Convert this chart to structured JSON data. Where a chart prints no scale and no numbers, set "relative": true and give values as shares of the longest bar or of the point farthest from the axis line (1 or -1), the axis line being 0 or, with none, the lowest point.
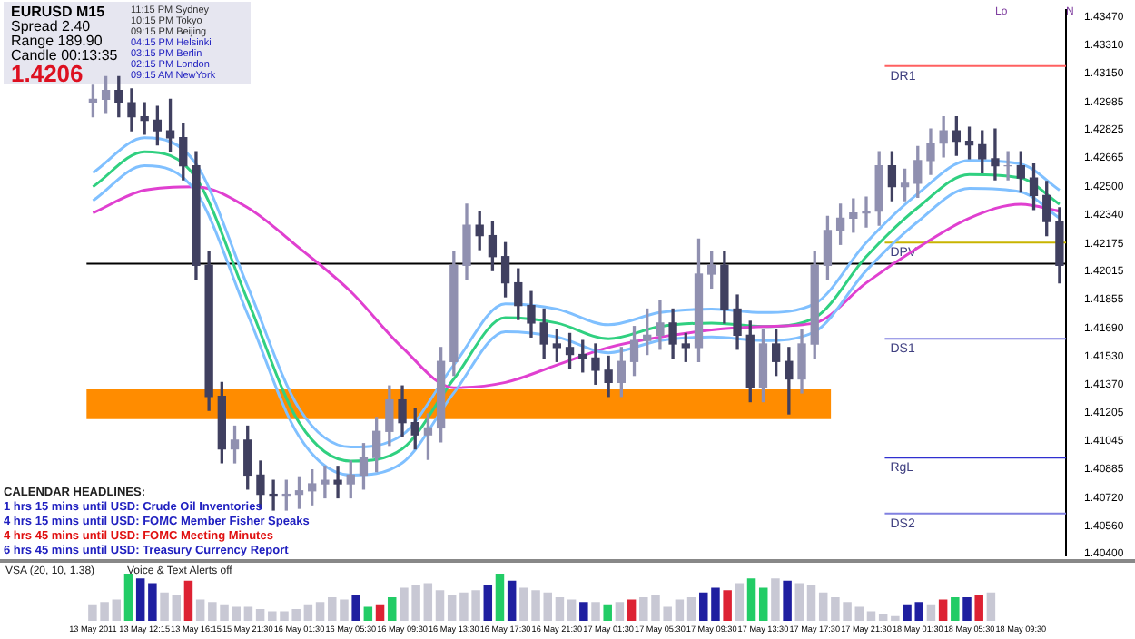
{
  "chart_data": [
    {
      "type": "candlestick",
      "categories": [
        "13 May 2011",
        null,
        null,
        null,
        "13 May 12:15",
        null,
        null,
        null,
        "13 May 16:15",
        null,
        null,
        null,
        "15 May 21:30",
        null,
        null,
        null,
        "16 May 01:30",
        null,
        null,
        null,
        "16 May 05:30",
        null,
        null,
        null,
        "16 May 09:30",
        null,
        null,
        null,
        "16 May 13:30",
        null,
        null,
        null,
        "16 May 17:30",
        null,
        null,
        null,
        "16 May 21:30",
        null,
        null,
        null,
        "17 May 01:30",
        null,
        null,
        null,
        "17 May 05:30",
        null,
        null,
        null,
        "17 May 09:30",
        null,
        null,
        null,
        "17 May 13:30",
        null,
        null,
        null,
        "17 May 17:30",
        null,
        null,
        null,
        "17 May 21:30",
        null,
        null,
        null,
        "18 May 01:30",
        null,
        null,
        null,
        "18 May 05:30",
        null,
        null,
        null,
        "18 May 09:30",
        null,
        null,
        null
      ],
      "ohlc": [
        [
          1.4298,
          1.4308,
          1.429,
          1.43
        ],
        [
          1.43,
          1.4313,
          1.4292,
          1.4305
        ],
        [
          1.4305,
          1.4313,
          1.429,
          1.4298
        ],
        [
          1.4298,
          1.4306,
          1.4282,
          1.429
        ],
        [
          1.429,
          1.4298,
          1.428,
          1.4288
        ],
        [
          1.4288,
          1.4296,
          1.4274,
          1.4282
        ],
        [
          1.4282,
          1.43,
          1.427,
          1.4278
        ],
        [
          1.4278,
          1.4286,
          1.4254,
          1.4262
        ],
        [
          1.4262,
          1.427,
          1.4197,
          1.4205
        ],
        [
          1.4205,
          1.4213,
          1.4122,
          1.413
        ],
        [
          1.413,
          1.4138,
          1.4092,
          1.41
        ],
        [
          1.41,
          1.4113,
          1.4092,
          1.4105
        ],
        [
          1.4105,
          1.4113,
          1.4077,
          1.4085
        ],
        [
          1.4085,
          1.4093,
          1.4066,
          1.4074
        ],
        [
          1.4074,
          1.4082,
          1.4065,
          1.4073
        ],
        [
          1.4073,
          1.4082,
          1.4065,
          1.4074
        ],
        [
          1.4074,
          1.4084,
          1.4066,
          1.4076
        ],
        [
          1.4076,
          1.4088,
          1.4068,
          1.408
        ],
        [
          1.408,
          1.409,
          1.4072,
          1.4082
        ],
        [
          1.4082,
          1.409,
          1.4072,
          1.408
        ],
        [
          1.408,
          1.4093,
          1.4072,
          1.4085
        ],
        [
          1.4085,
          1.4103,
          1.4077,
          1.4095
        ],
        [
          1.4095,
          1.4118,
          1.4087,
          1.411
        ],
        [
          1.411,
          1.4136,
          1.4102,
          1.4128
        ],
        [
          1.4128,
          1.4136,
          1.4107,
          1.4115
        ],
        [
          1.4115,
          1.4123,
          1.41,
          1.4108
        ],
        [
          1.4108,
          1.412,
          1.4094,
          1.4112
        ],
        [
          1.4112,
          1.4158,
          1.4104,
          1.415
        ],
        [
          1.415,
          1.4213,
          1.4142,
          1.4205
        ],
        [
          1.4205,
          1.424,
          1.4197,
          1.4228
        ],
        [
          1.4228,
          1.4236,
          1.4214,
          1.4222
        ],
        [
          1.4222,
          1.423,
          1.4202,
          1.421
        ],
        [
          1.421,
          1.4218,
          1.4187,
          1.4195
        ],
        [
          1.4195,
          1.4203,
          1.4174,
          1.4182
        ],
        [
          1.4182,
          1.419,
          1.4164,
          1.4172
        ],
        [
          1.4172,
          1.418,
          1.4152,
          1.416
        ],
        [
          1.416,
          1.4168,
          1.415,
          1.4158
        ],
        [
          1.4158,
          1.4166,
          1.4146,
          1.4154
        ],
        [
          1.4154,
          1.4162,
          1.4144,
          1.4152
        ],
        [
          1.4152,
          1.416,
          1.4137,
          1.4145
        ],
        [
          1.4145,
          1.4153,
          1.413,
          1.4138
        ],
        [
          1.4138,
          1.4158,
          1.413,
          1.415
        ],
        [
          1.415,
          1.417,
          1.4142,
          1.4162
        ],
        [
          1.4162,
          1.418,
          1.4154,
          1.4165
        ],
        [
          1.4165,
          1.4185,
          1.4157,
          1.4172
        ],
        [
          1.4172,
          1.418,
          1.4152,
          1.416
        ],
        [
          1.416,
          1.4166,
          1.415,
          1.4158
        ],
        [
          1.4158,
          1.422,
          1.415,
          1.42
        ],
        [
          1.42,
          1.4213,
          1.4192,
          1.4205
        ],
        [
          1.4205,
          1.4213,
          1.4172,
          1.418
        ],
        [
          1.418,
          1.4188,
          1.4157,
          1.4165
        ],
        [
          1.4165,
          1.4173,
          1.4127,
          1.4135
        ],
        [
          1.4135,
          1.4168,
          1.4127,
          1.416
        ],
        [
          1.416,
          1.4168,
          1.4142,
          1.415
        ],
        [
          1.415,
          1.4158,
          1.412,
          1.414
        ],
        [
          1.414,
          1.4168,
          1.4132,
          1.416
        ],
        [
          1.416,
          1.4213,
          1.4152,
          1.4205
        ],
        [
          1.4205,
          1.4233,
          1.4197,
          1.4225
        ],
        [
          1.4225,
          1.424,
          1.4217,
          1.4232
        ],
        [
          1.4232,
          1.4243,
          1.4224,
          1.4235
        ],
        [
          1.4235,
          1.4244,
          1.4227,
          1.4236
        ],
        [
          1.4236,
          1.427,
          1.4228,
          1.4262
        ],
        [
          1.4262,
          1.427,
          1.4242,
          1.425
        ],
        [
          1.425,
          1.426,
          1.4242,
          1.4252
        ],
        [
          1.4252,
          1.4273,
          1.4244,
          1.4265
        ],
        [
          1.4265,
          1.4283,
          1.4257,
          1.4275
        ],
        [
          1.4275,
          1.429,
          1.4267,
          1.4282
        ],
        [
          1.4282,
          1.429,
          1.4268,
          1.4276
        ],
        [
          1.4276,
          1.4284,
          1.4266,
          1.4274
        ],
        [
          1.4274,
          1.4282,
          1.4258,
          1.4266
        ],
        [
          1.4266,
          1.4283,
          1.4254,
          1.4262
        ],
        [
          1.4262,
          1.427,
          1.4254,
          1.4262
        ],
        [
          1.4262,
          1.427,
          1.4247,
          1.4255
        ],
        [
          1.4255,
          1.4263,
          1.4237,
          1.4245
        ],
        [
          1.4245,
          1.4253,
          1.4222,
          1.423
        ],
        [
          1.423,
          1.4238,
          1.4195,
          1.4205
        ]
      ],
      "colors": [
        "#9090b0",
        "#9090b0",
        "#404060",
        "#404060",
        "#404060",
        "#404060",
        "#404060",
        "#404060",
        "#404060",
        "#404060",
        "#404060",
        "#9090b0",
        "#404060",
        "#404060",
        "#404060",
        "#9090b0",
        "#9090b0",
        "#9090b0",
        "#9090b0",
        "#404060",
        "#9090b0",
        "#9090b0",
        "#9090b0",
        "#9090b0",
        "#404060",
        "#404060",
        "#9090b0",
        "#9090b0",
        "#9090b0",
        "#9090b0",
        "#404060",
        "#404060",
        "#404060",
        "#404060",
        "#404060",
        "#404060",
        "#404060",
        "#404060",
        "#404060",
        "#404060",
        "#404060",
        "#9090b0",
        "#9090b0",
        "#9090b0",
        "#9090b0",
        "#404060",
        "#404060",
        "#9090b0",
        "#9090b0",
        "#404060",
        "#404060",
        "#404060",
        "#9090b0",
        "#404060",
        "#404060",
        "#9090b0",
        "#9090b0",
        "#9090b0",
        "#9090b0",
        "#9090b0",
        "#9090b0",
        "#9090b0",
        "#404060",
        "#9090b0",
        "#9090b0",
        "#9090b0",
        "#9090b0",
        "#404060",
        "#404060",
        "#404060",
        "#404060",
        "#9090b0",
        "#404060",
        "#404060",
        "#404060",
        "#404060"
      ],
      "series": [
        {
          "type": "line",
          "color": "#80c0ff",
          "values": [
            1.4258,
            null,
            null,
            null,
            1.4278,
            null,
            null,
            null,
            1.4263,
            null,
            null,
            null,
            1.4193,
            null,
            null,
            null,
            1.4123,
            null,
            null,
            null,
            1.4101,
            null,
            null,
            null,
            1.4108,
            null,
            null,
            null,
            1.4148,
            null,
            null,
            null,
            1.4183,
            null,
            null,
            null,
            1.418,
            null,
            null,
            null,
            1.4171,
            null,
            null,
            null,
            1.4178,
            null,
            null,
            null,
            1.418,
            null,
            null,
            null,
            1.4178,
            null,
            null,
            null,
            1.4183,
            null,
            null,
            null,
            1.4218,
            null,
            null,
            null,
            1.4246,
            null,
            null,
            null,
            1.4265,
            null,
            null,
            null,
            1.4263,
            null,
            null,
            1.4248
          ]
        },
        {
          "type": "line",
          "color": "#80c0ff",
          "values": [
            1.4242,
            null,
            null,
            null,
            1.4262,
            null,
            null,
            null,
            1.4247,
            null,
            null,
            null,
            1.4177,
            null,
            null,
            null,
            1.4107,
            null,
            null,
            null,
            1.4085,
            null,
            null,
            null,
            1.4092,
            null,
            null,
            null,
            1.4132,
            null,
            null,
            null,
            1.4167,
            null,
            null,
            null,
            1.4164,
            null,
            null,
            null,
            1.4155,
            null,
            null,
            null,
            1.4162,
            null,
            null,
            null,
            1.4164,
            null,
            null,
            null,
            1.4162,
            null,
            null,
            null,
            1.4167,
            null,
            null,
            null,
            1.4202,
            null,
            null,
            null,
            1.423,
            null,
            null,
            null,
            1.4249,
            null,
            null,
            null,
            1.4247,
            null,
            null,
            1.4232
          ]
        },
        {
          "type": "line",
          "color": "#e040d0",
          "values": [
            1.4235,
            null,
            null,
            null,
            1.4248,
            null,
            null,
            null,
            1.425,
            null,
            null,
            null,
            1.4238,
            null,
            null,
            null,
            1.4215,
            null,
            null,
            null,
            1.419,
            null,
            null,
            null,
            1.4158,
            null,
            null,
            null,
            1.4135,
            null,
            null,
            null,
            1.4138,
            null,
            null,
            null,
            1.4148,
            null,
            null,
            null,
            1.4158,
            null,
            null,
            null,
            null,
            null,
            null,
            null,
            1.4168,
            null,
            null,
            null,
            1.417,
            null,
            null,
            null,
            1.4172,
            null,
            null,
            null,
            1.4195,
            null,
            null,
            null,
            1.4215,
            null,
            null,
            null,
            1.4232,
            null,
            null,
            null,
            1.424,
            null,
            null,
            1.4236
          ]
        },
        {
          "type": "line",
          "color": "#30d080",
          "values": [
            1.425,
            null,
            null,
            null,
            1.427,
            null,
            null,
            null,
            1.4255,
            null,
            null,
            null,
            1.4185,
            null,
            null,
            null,
            1.4115,
            null,
            null,
            null,
            1.4093,
            null,
            null,
            null,
            1.41,
            null,
            null,
            null,
            1.414,
            null,
            null,
            null,
            1.4175,
            null,
            null,
            null,
            1.4172,
            null,
            null,
            null,
            1.4163,
            null,
            null,
            null,
            1.417,
            null,
            null,
            null,
            1.4172,
            null,
            null,
            null,
            1.417,
            null,
            null,
            null,
            1.4175,
            null,
            null,
            null,
            1.421,
            null,
            null,
            null,
            1.4238,
            null,
            null,
            null,
            1.4257,
            null,
            null,
            null,
            1.4255,
            null,
            null,
            1.424
          ]
        }
      ],
      "ylim": [
        1.4039,
        1.4351
      ],
      "yticks": [
        {
          "value": 1.4347,
          "label": "1.43470"
        },
        {
          "value": 1.4331,
          "label": "1.43310"
        },
        {
          "value": 1.4315,
          "label": "1.43150"
        },
        {
          "value": 1.42985,
          "label": "1.42985"
        },
        {
          "value": 1.42825,
          "label": "1.42825"
        },
        {
          "value": 1.42665,
          "label": "1.42665"
        },
        {
          "value": 1.425,
          "label": "1.42500"
        },
        {
          "value": 1.4234,
          "label": "1.42340"
        },
        {
          "value": 1.42175,
          "label": "1.42175"
        },
        {
          "value": 1.42015,
          "label": "1.42015"
        },
        {
          "value": 1.41855,
          "label": "1.41855"
        },
        {
          "value": 1.4169,
          "label": "1.41690"
        },
        {
          "value": 1.4153,
          "label": "1.41530"
        },
        {
          "value": 1.4137,
          "label": "1.41370"
        },
        {
          "value": 1.41205,
          "label": "1.41205"
        },
        {
          "value": 1.41045,
          "label": "1.41045"
        },
        {
          "value": 1.40885,
          "label": "1.40885"
        },
        {
          "value": 1.4072,
          "label": "1.40720"
        },
        {
          "value": 1.4056,
          "label": "1.40560"
        },
        {
          "value": 1.404,
          "label": "1.40400"
        }
      ],
      "ref_lines": [
        {
          "axis": "y",
          "value": 1.4319,
          "label": "DR1",
          "color": "#ff6060"
        },
        {
          "axis": "y",
          "value": 1.4218,
          "label": "DPV",
          "color": "#c8b400"
        },
        {
          "axis": "y",
          "value": 1.4163,
          "label": "DS1",
          "color": "#8080e0"
        },
        {
          "axis": "y",
          "value": 1.4095,
          "label": "RgL",
          "color": "#3030d0"
        },
        {
          "axis": "y",
          "value": 1.4063,
          "label": "DS2",
          "color": "#8080e0"
        },
        {
          "axis": "y",
          "value": 1.4206,
          "label": null,
          "color": "#000000"
        }
      ],
      "bands": [
        {
          "axis": "y",
          "from": 1.4117,
          "to": 1.4134,
          "label": null,
          "color": "#ff8c00"
        }
      ],
      "annotations": [
        "EURUSD  M15",
        "Spread  2.40",
        "Range  189.90",
        "Candle  00:13:35",
        "1.4206",
        "11:15 PM  Sydney",
        "10:15 PM  Tokyo",
        "09:15 PM  Beijing",
        "04:15 PM  Helsinki",
        "03:15 PM  Berlin",
        "02:15 PM  London",
        "09:15 AM  NewYork",
        "CALENDAR HEADLINES:",
        "1 hrs 15 mins until USD: Crude Oil Inventories",
        "4 hrs 15 mins until USD: FOMC Member Fisher Speaks",
        "4 hrs 45 mins until USD: FOMC Meeting Minutes",
        "6 hrs 45 mins until USD: Treasury Currency Report",
        "Lo",
        "N"
      ],
      "grid": false,
      "legend": false
    },
    {
      "type": "bar",
      "relative": true,
      "categories": [
        null,
        null,
        null,
        null,
        null,
        null,
        null,
        null,
        null,
        null,
        null,
        null,
        null,
        null,
        null,
        null,
        null,
        null,
        null,
        null,
        null,
        null,
        null,
        null,
        null,
        null,
        null,
        null,
        null,
        null,
        null,
        null,
        null,
        null,
        null,
        null,
        null,
        null,
        null,
        null,
        null,
        null,
        null,
        null,
        null,
        null,
        null,
        null,
        null,
        null,
        null,
        null,
        null,
        null,
        null,
        null,
        null,
        null,
        null,
        null,
        null,
        null,
        null,
        null,
        null,
        null,
        null,
        null,
        null,
        null,
        null,
        null,
        null,
        null,
        null,
        null
      ],
      "values": [
        0.35,
        0.4,
        0.45,
        1,
        0.9,
        0.8,
        0.6,
        0.55,
        0.85,
        0.45,
        0.4,
        0.35,
        0.3,
        0.3,
        0.25,
        0.2,
        0.2,
        0.25,
        0.35,
        0.4,
        0.5,
        0.45,
        0.55,
        0.3,
        0.35,
        0.5,
        0.7,
        0.75,
        0.8,
        0.65,
        0.55,
        0.6,
        0.65,
        0.75,
        1,
        0.85,
        0.7,
        0.65,
        0.6,
        0.5,
        0.45,
        0.4,
        0.4,
        0.35,
        0.4,
        0.45,
        0.5,
        0.55,
        0.3,
        0.45,
        0.5,
        0.6,
        0.7,
        0.65,
        0.8,
        0.9,
        0.7,
        0.9,
        0.85,
        0.8,
        0.75,
        0.6,
        0.5,
        0.4,
        0.3,
        0.2,
        0.15,
        0.1,
        0.35,
        0.4,
        0.35,
        0.45,
        0.5,
        0.5,
        0.55,
        0.6
      ],
      "colors": [
        "#c8c8d4",
        "#c8c8d4",
        "#c8c8d4",
        "#22cc66",
        "#1f1fa0",
        "#1f1fa0",
        "#c8c8d4",
        "#c8c8d4",
        "#dd2233",
        "#c8c8d4",
        "#c8c8d4",
        "#c8c8d4",
        "#c8c8d4",
        "#c8c8d4",
        "#c8c8d4",
        "#c8c8d4",
        "#c8c8d4",
        "#c8c8d4",
        "#c8c8d4",
        "#c8c8d4",
        "#c8c8d4",
        "#c8c8d4",
        "#1f1fa0",
        "#22cc66",
        "#dd2233",
        "#22cc66",
        "#c8c8d4",
        "#c8c8d4",
        "#c8c8d4",
        "#c8c8d4",
        "#c8c8d4",
        "#c8c8d4",
        "#c8c8d4",
        "#1f1fa0",
        "#22cc66",
        "#1f1fa0",
        "#c8c8d4",
        "#c8c8d4",
        "#c8c8d4",
        "#c8c8d4",
        "#c8c8d4",
        "#1f1fa0",
        "#c8c8d4",
        "#22cc66",
        "#c8c8d4",
        "#dd2233",
        "#c8c8d4",
        "#c8c8d4",
        "#c8c8d4",
        "#c8c8d4",
        "#c8c8d4",
        "#1f1fa0",
        "#1f1fa0",
        "#dd2233",
        "#c8c8d4",
        "#22cc66",
        "#22cc66",
        "#c8c8d4",
        "#1f1fa0",
        "#c8c8d4",
        "#c8c8d4",
        "#c8c8d4",
        "#c8c8d4",
        "#c8c8d4",
        "#c8c8d4",
        "#c8c8d4",
        "#c8c8d4",
        "#c8c8d4",
        "#1f1fa0",
        "#1f1fa0",
        "#c8c8d4",
        "#dd2233",
        "#22cc66",
        "#1f1fa0",
        "#dd2233",
        "#c8c8d4"
      ],
      "annotations": [
        "VSA (20, 10, 1.38)",
        "Voice & Text Alerts off"
      ],
      "grid": false,
      "legend": false
    }
  ]
}
